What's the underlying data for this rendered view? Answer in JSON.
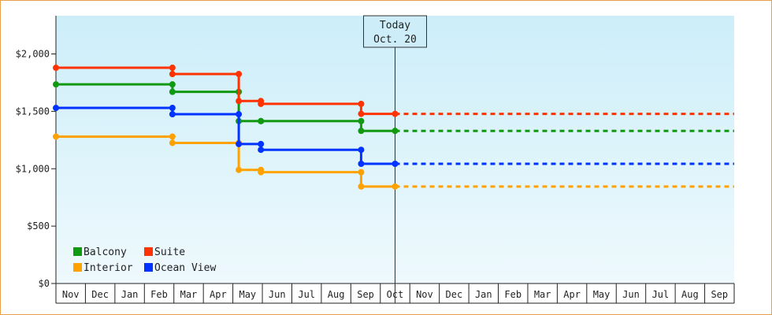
{
  "chart_data": {
    "type": "line",
    "step": true,
    "ylim": [
      0,
      2333
    ],
    "y_ticks": [
      0,
      500,
      1000,
      1500,
      2000
    ],
    "y_tick_labels": [
      "$0",
      "$500",
      "$1,000",
      "$1,500",
      "$2,000"
    ],
    "x_range_months": 23,
    "month_labels": [
      "Nov",
      "Dec",
      "Jan",
      "Feb",
      "Mar",
      "Apr",
      "May",
      "Jun",
      "Jul",
      "Aug",
      "Sep",
      "Oct",
      "Nov",
      "Dec",
      "Jan",
      "Feb",
      "Mar",
      "Apr",
      "May",
      "Jun",
      "Jul",
      "Aug",
      "Sep"
    ],
    "background_gradient": [
      "#cdeef9",
      "#eef9fd"
    ],
    "today": {
      "x": 11.5,
      "line1": "Today",
      "line2": "Oct. 20"
    },
    "legend": {
      "placement": "bottom-left"
    },
    "series": [
      {
        "name": "Balcony",
        "color": "#119911",
        "points": [
          [
            0,
            1735
          ],
          [
            3.95,
            1735
          ],
          [
            3.95,
            1670
          ],
          [
            6.2,
            1670
          ],
          [
            6.2,
            1415
          ],
          [
            6.95,
            1415
          ],
          [
            6.95,
            1415
          ],
          [
            10.35,
            1415
          ],
          [
            10.35,
            1330
          ],
          [
            11.5,
            1330
          ]
        ],
        "projection": [
          [
            11.5,
            1330
          ],
          [
            23,
            1330
          ]
        ]
      },
      {
        "name": "Suite",
        "color": "#ff3300",
        "points": [
          [
            0,
            1880
          ],
          [
            3.95,
            1880
          ],
          [
            3.95,
            1825
          ],
          [
            6.2,
            1825
          ],
          [
            6.2,
            1590
          ],
          [
            6.95,
            1590
          ],
          [
            6.95,
            1565
          ],
          [
            10.35,
            1565
          ],
          [
            10.35,
            1478
          ],
          [
            11.5,
            1478
          ]
        ],
        "projection": [
          [
            11.5,
            1478
          ],
          [
            23,
            1478
          ]
        ]
      },
      {
        "name": "Interior",
        "color": "#ffa200",
        "points": [
          [
            0,
            1280
          ],
          [
            3.95,
            1280
          ],
          [
            3.95,
            1225
          ],
          [
            6.2,
            1225
          ],
          [
            6.2,
            990
          ],
          [
            6.95,
            990
          ],
          [
            6.95,
            970
          ],
          [
            10.35,
            970
          ],
          [
            10.35,
            845
          ],
          [
            11.5,
            845
          ]
        ],
        "projection": [
          [
            11.5,
            845
          ],
          [
            23,
            845
          ]
        ]
      },
      {
        "name": "Ocean View",
        "color": "#0033ff",
        "points": [
          [
            0,
            1530
          ],
          [
            3.95,
            1530
          ],
          [
            3.95,
            1475
          ],
          [
            6.2,
            1475
          ],
          [
            6.2,
            1215
          ],
          [
            6.95,
            1215
          ],
          [
            6.95,
            1165
          ],
          [
            10.35,
            1165
          ],
          [
            10.35,
            1043
          ],
          [
            11.5,
            1043
          ]
        ],
        "projection": [
          [
            11.5,
            1043
          ],
          [
            23,
            1043
          ]
        ]
      }
    ]
  }
}
